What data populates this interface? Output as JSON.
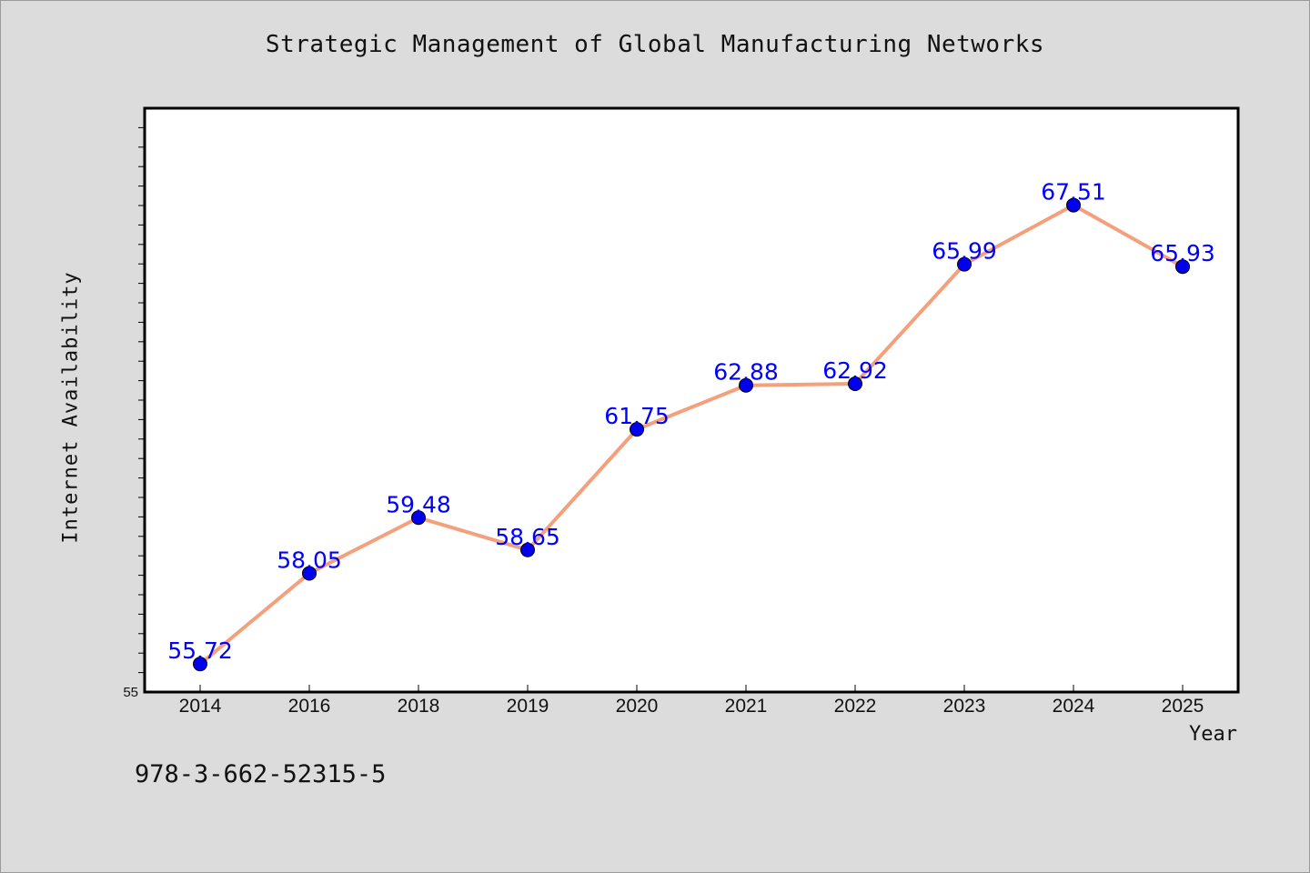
{
  "title": "Strategic Management of Global Manufacturing Networks",
  "xlabel": "Year",
  "ylabel": "Internet Availability",
  "isbn": "978-3-662-52315-5",
  "ymin_label": "55",
  "colors": {
    "background": "#dcdcdc",
    "plot_background": "#ffffff",
    "line": "#f4a07c",
    "marker": "#0000ee",
    "data_label": "#0000ff"
  },
  "chart_data": {
    "type": "line",
    "title": "Strategic Management of Global Manufacturing Networks",
    "xlabel": "Year",
    "ylabel": "Internet Availability",
    "categories": [
      "2014",
      "2016",
      "2018",
      "2019",
      "2020",
      "2021",
      "2022",
      "2023",
      "2024",
      "2025"
    ],
    "series": [
      {
        "values": [
          55.72,
          58.05,
          59.48,
          58.65,
          61.75,
          62.88,
          62.92,
          65.99,
          67.51,
          65.93
        ],
        "labels": [
          "55.72",
          "58.05",
          "59.48",
          "58.65",
          "61.75",
          "62.88",
          "62.92",
          "65.99",
          "67.51",
          "65.93"
        ]
      }
    ],
    "ylim": [
      55,
      70
    ],
    "y_tick_labels": [
      "55"
    ],
    "grid": false,
    "legend": "none"
  }
}
